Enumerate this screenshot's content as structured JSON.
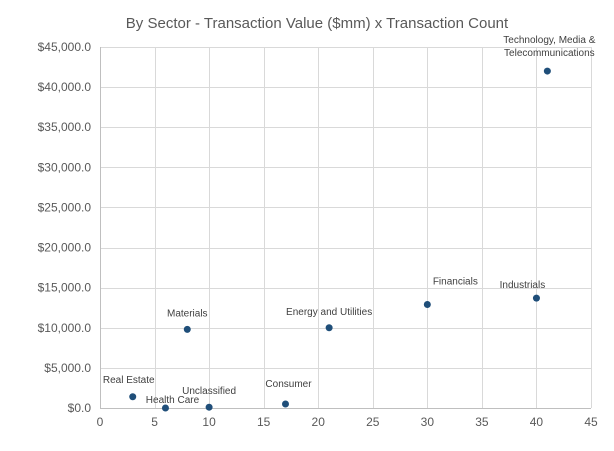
{
  "chart_data": {
    "type": "scatter",
    "title": "By Sector - Transaction Value ($mm) x Transaction Count",
    "xlabel": "",
    "ylabel": "",
    "xlim": [
      0,
      45
    ],
    "ylim": [
      0,
      45000
    ],
    "x_ticks": [
      0,
      5,
      10,
      15,
      20,
      25,
      30,
      35,
      40,
      45
    ],
    "x_tick_labels": [
      "0",
      "5",
      "10",
      "15",
      "20",
      "25",
      "30",
      "35",
      "40",
      "45"
    ],
    "y_ticks": [
      0,
      5000,
      10000,
      15000,
      20000,
      25000,
      30000,
      35000,
      40000,
      45000
    ],
    "y_tick_labels": [
      "$0.0",
      "$5,000.0",
      "$10,000.0",
      "$15,000.0",
      "$20,000.0",
      "$25,000.0",
      "$30,000.0",
      "$35,000.0",
      "$40,000.0",
      "$45,000.0"
    ],
    "grid": true,
    "legend": "none",
    "marker_color": "#1f4e79",
    "points": [
      {
        "label": "Real Estate",
        "label_lines": [
          "Real Estate"
        ],
        "x": 3,
        "y": 1400
      },
      {
        "label": "Health Care",
        "label_lines": [
          "Health Care"
        ],
        "x": 6,
        "y": 0
      },
      {
        "label": "Materials",
        "label_lines": [
          "Materials"
        ],
        "x": 8,
        "y": 9800
      },
      {
        "label": "Unclassified",
        "label_lines": [
          "Unclassified"
        ],
        "x": 10,
        "y": 100
      },
      {
        "label": "Consumer",
        "label_lines": [
          "Consumer"
        ],
        "x": 17,
        "y": 500
      },
      {
        "label": "Energy and Utilities",
        "label_lines": [
          "Energy and Utilities"
        ],
        "x": 21,
        "y": 10000
      },
      {
        "label": "Financials",
        "label_lines": [
          "Financials"
        ],
        "x": 30,
        "y": 12900
      },
      {
        "label": "Industrials",
        "label_lines": [
          "Industrials"
        ],
        "x": 40,
        "y": 13700
      },
      {
        "label": "Technology, Media & Telecommunications",
        "label_lines": [
          "Technology, Media &",
          "Telecommunications"
        ],
        "x": 41,
        "y": 42000
      }
    ]
  }
}
